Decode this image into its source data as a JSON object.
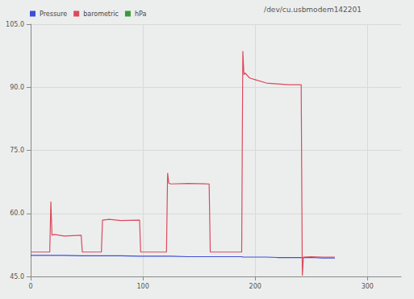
{
  "chart_data": {
    "type": "line",
    "title": "/dev/cu.usbmodem142201",
    "x": [
      0,
      17,
      18,
      19,
      21,
      30,
      45,
      46,
      63,
      64,
      70,
      80,
      97,
      98,
      121,
      122,
      123,
      125,
      140,
      159,
      160,
      188,
      189,
      190,
      191,
      195,
      200,
      210,
      220,
      230,
      241,
      242,
      243,
      250,
      260,
      271
    ],
    "series": [
      {
        "name": "Pressure",
        "color": "#3b4fd8",
        "values": [
          50.0,
          50.0,
          50.0,
          50.0,
          50.0,
          50.0,
          49.9,
          49.9,
          49.9,
          49.9,
          49.9,
          49.9,
          49.8,
          49.8,
          49.8,
          49.8,
          49.8,
          49.8,
          49.7,
          49.7,
          49.7,
          49.7,
          49.6,
          49.6,
          49.6,
          49.6,
          49.6,
          49.6,
          49.5,
          49.5,
          49.5,
          49.5,
          49.5,
          49.5,
          49.4,
          49.4
        ]
      },
      {
        "name": "barometric",
        "color": "#dc4a5c",
        "values": [
          50.8,
          50.8,
          62.8,
          54.8,
          55.0,
          54.6,
          54.8,
          50.8,
          50.8,
          58.4,
          58.6,
          58.3,
          58.4,
          50.8,
          50.8,
          69.6,
          67.2,
          67.0,
          67.1,
          67.0,
          50.8,
          50.8,
          98.6,
          93.0,
          93.4,
          92.2,
          91.8,
          91.0,
          90.8,
          90.6,
          90.6,
          45.2,
          49.6,
          49.7,
          49.6,
          49.6
        ]
      },
      {
        "name": "hPa",
        "color": "#3a9a3a",
        "values": [
          null,
          null,
          null,
          null,
          null,
          null,
          null,
          null,
          null,
          null,
          null,
          null,
          null,
          null,
          null,
          null,
          null,
          null,
          null,
          null,
          null,
          null,
          null,
          null,
          null,
          null,
          null,
          null,
          null,
          null,
          null,
          null,
          null,
          null,
          null,
          null
        ]
      }
    ],
    "xlim": [
      0,
      330
    ],
    "xticks": [
      0,
      100,
      200,
      300
    ],
    "ylim": [
      45,
      105
    ],
    "yticks": [
      {
        "value": 45,
        "label": "45.0"
      },
      {
        "value": 60,
        "label": "60.0"
      },
      {
        "value": 75,
        "label": "75.0"
      },
      {
        "value": 90,
        "label": "90.0"
      },
      {
        "value": 105,
        "label": "105.0"
      }
    ],
    "grid": true,
    "legend": "top-left"
  }
}
